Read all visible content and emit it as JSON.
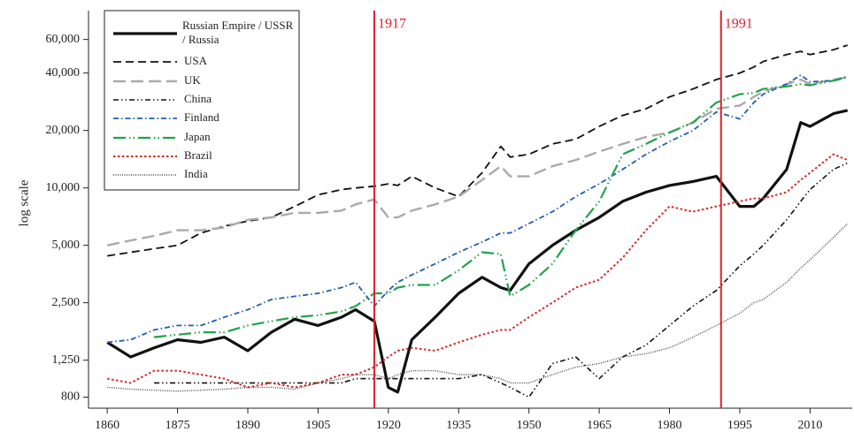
{
  "chart_data": {
    "type": "line",
    "y_label": "log scale",
    "log_y": true,
    "x": [
      1860,
      1865,
      1870,
      1875,
      1880,
      1885,
      1890,
      1895,
      1900,
      1905,
      1910,
      1913,
      1917,
      1920,
      1922,
      1925,
      1930,
      1935,
      1940,
      1944,
      1946,
      1950,
      1955,
      1960,
      1965,
      1970,
      1975,
      1980,
      1985,
      1990,
      1995,
      1998,
      2000,
      2005,
      2008,
      2010,
      2015,
      2018
    ],
    "xlim": [
      1856,
      2019
    ],
    "xticks": [
      1860,
      1875,
      1890,
      1905,
      1920,
      1935,
      1950,
      1965,
      1980,
      1995,
      2010
    ],
    "ylim": [
      700,
      85000
    ],
    "yticks": [
      800,
      {
        "value": 1250,
        "label": "1,250"
      },
      {
        "value": 2500,
        "label": "2,500"
      },
      {
        "value": 5000,
        "label": "5,000"
      },
      {
        "value": 10000,
        "label": "10,000"
      },
      {
        "value": 20000,
        "label": "20,000"
      },
      {
        "value": 40000,
        "label": "40,000"
      },
      {
        "value": 60000,
        "label": "60,000"
      }
    ],
    "legend": "upper left",
    "annotations": [
      {
        "text": "1917",
        "x": 1917,
        "color": "#e0202a"
      },
      {
        "text": "1991",
        "x": 1991,
        "color": "#e0202a"
      }
    ],
    "series": [
      {
        "name": "Russian Empire / USSR / Russia",
        "color": "#111111",
        "dash": "none",
        "width": 3.2,
        "values": [
          1550,
          1300,
          1450,
          1600,
          1550,
          1650,
          1400,
          1750,
          2050,
          1900,
          2100,
          2300,
          2000,
          900,
          850,
          1600,
          2100,
          2800,
          3400,
          3000,
          2900,
          4000,
          5000,
          6000,
          7000,
          8500,
          9500,
          10300,
          10800,
          11500,
          8000,
          8000,
          8800,
          12500,
          22000,
          21000,
          24500,
          25500
        ]
      },
      {
        "name": "USA",
        "color": "#111111",
        "dash": "9,5",
        "width": 1.8,
        "values": [
          4400,
          4600,
          4800,
          5000,
          5800,
          6300,
          6700,
          7000,
          8000,
          9200,
          9800,
          10000,
          10200,
          10500,
          10300,
          11500,
          10000,
          9000,
          12000,
          16500,
          14500,
          15000,
          17000,
          18000,
          21000,
          24000,
          26000,
          30000,
          33000,
          37000,
          40000,
          43000,
          46000,
          50000,
          52000,
          50000,
          53000,
          56000
        ]
      },
      {
        "name": "UK",
        "color": "#aaaaaa",
        "dash": "14,6",
        "width": 2.4,
        "values": [
          5000,
          5300,
          5600,
          6000,
          6000,
          6200,
          6800,
          7000,
          7400,
          7400,
          7600,
          8200,
          8700,
          7000,
          7000,
          7600,
          8200,
          9000,
          11000,
          13000,
          11500,
          11500,
          13000,
          14000,
          15500,
          17000,
          18500,
          19500,
          22000,
          26000,
          27000,
          30000,
          32000,
          35000,
          37000,
          35000,
          37000,
          38000
        ]
      },
      {
        "name": "China",
        "color": "#111111",
        "dash": "6,3,1.5,3,1.5,3",
        "width": 1.6,
        "values": [
          null,
          null,
          950,
          950,
          950,
          950,
          950,
          950,
          950,
          950,
          950,
          1000,
          1000,
          1000,
          1000,
          1000,
          1000,
          1000,
          1050,
          950,
          900,
          800,
          1200,
          1300,
          1000,
          1300,
          1500,
          1900,
          2400,
          2900,
          3900,
          4500,
          5000,
          6800,
          8500,
          9800,
          12500,
          13500
        ]
      },
      {
        "name": "Finland",
        "color": "#1f5fb0",
        "dash": "6,3,1.5,3",
        "width": 1.8,
        "values": [
          1550,
          1600,
          1800,
          1900,
          1900,
          2100,
          2300,
          2600,
          2700,
          2800,
          3000,
          3200,
          2400,
          2900,
          3200,
          3500,
          4000,
          4600,
          5200,
          5800,
          5800,
          6500,
          7500,
          9000,
          10500,
          12500,
          15000,
          17500,
          20000,
          25000,
          23000,
          28000,
          31000,
          35000,
          39000,
          36000,
          36500,
          38500
        ]
      },
      {
        "name": "Japan",
        "color": "#22a24a",
        "dash": "14,4,1.5,3,1.5,4",
        "width": 2.2,
        "values": [
          null,
          null,
          1650,
          1700,
          1750,
          1750,
          1900,
          2000,
          2100,
          2150,
          2250,
          2400,
          2800,
          2800,
          3000,
          3100,
          3100,
          3700,
          4600,
          4500,
          2700,
          3100,
          4000,
          6000,
          8500,
          15000,
          17000,
          19500,
          22000,
          28000,
          31000,
          31500,
          33000,
          34000,
          35000,
          34500,
          36500,
          38000
        ]
      },
      {
        "name": "Brazil",
        "color": "#d42a2a",
        "dash": "2.5,2.5",
        "width": 2,
        "values": [
          1000,
          950,
          1100,
          1100,
          1050,
          1000,
          900,
          950,
          900,
          950,
          1050,
          1050,
          1150,
          1300,
          1400,
          1450,
          1400,
          1550,
          1700,
          1800,
          1800,
          2100,
          2500,
          3000,
          3300,
          4300,
          6000,
          8000,
          7500,
          8000,
          8500,
          8800,
          8800,
          9500,
          11000,
          12000,
          15000,
          14000
        ]
      },
      {
        "name": "India",
        "color": "#444444",
        "dash": "1,1.5",
        "width": 1.4,
        "values": [
          900,
          880,
          870,
          860,
          870,
          880,
          900,
          900,
          880,
          950,
          1000,
          1050,
          1050,
          1000,
          1050,
          1100,
          1100,
          1050,
          1050,
          1000,
          950,
          950,
          1050,
          1150,
          1200,
          1300,
          1350,
          1450,
          1650,
          1900,
          2200,
          2500,
          2600,
          3200,
          3800,
          4200,
          5500,
          6500
        ]
      }
    ]
  }
}
